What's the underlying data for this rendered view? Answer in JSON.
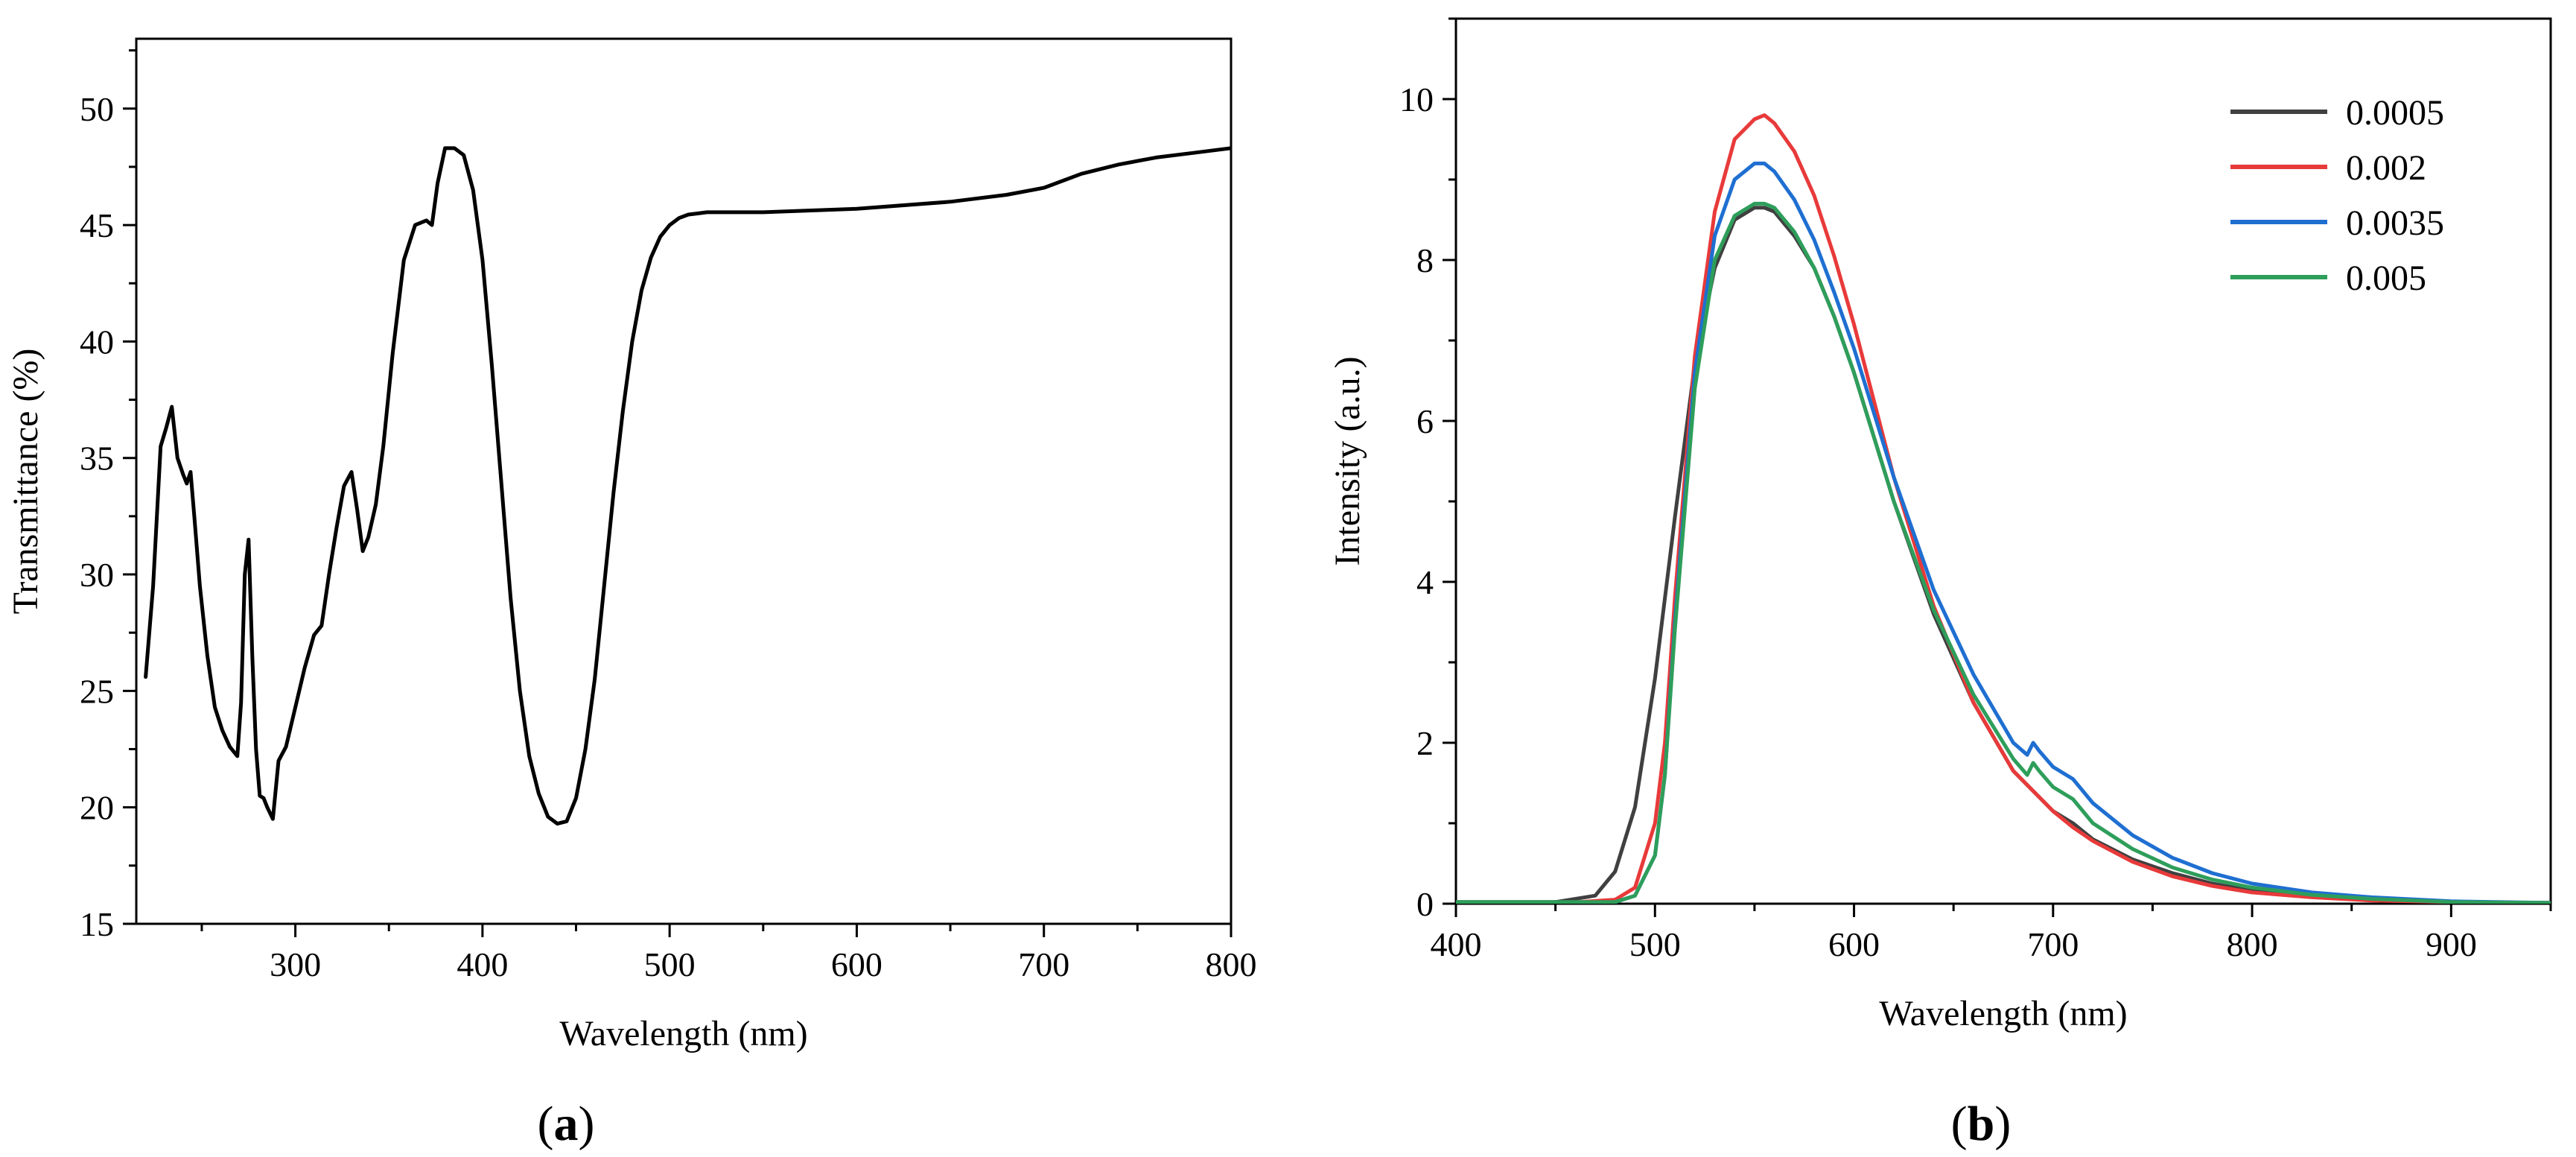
{
  "chart_data": [
    {
      "panel": "a",
      "panel_label": "(a)",
      "type": "line",
      "title": "",
      "xlabel": "Wavelength (nm)",
      "ylabel": "Transmittance (%)",
      "xlim": [
        215,
        800
      ],
      "ylim": [
        15,
        53
      ],
      "xticks": [
        300,
        400,
        500,
        600,
        700,
        800
      ],
      "yticks": [
        15,
        20,
        25,
        30,
        35,
        40,
        45,
        50
      ],
      "grid": false,
      "legend": null,
      "series": [
        {
          "name": "Transmittance",
          "color": "#000000",
          "x": [
            220,
            224,
            228,
            231,
            234,
            237,
            240,
            242,
            244,
            246,
            249,
            253,
            257,
            261,
            265,
            269,
            271,
            273,
            275,
            277,
            279,
            281,
            283,
            285,
            288,
            291,
            295,
            300,
            305,
            310,
            314,
            318,
            322,
            326,
            330,
            333,
            336,
            339,
            343,
            347,
            352,
            358,
            364,
            370,
            373,
            376,
            380,
            385,
            390,
            395,
            400,
            405,
            410,
            415,
            420,
            425,
            430,
            435,
            440,
            445,
            450,
            455,
            460,
            465,
            470,
            475,
            480,
            485,
            490,
            495,
            500,
            505,
            510,
            515,
            520,
            530,
            550,
            600,
            650,
            680,
            700,
            720,
            740,
            760,
            780,
            800
          ],
          "y": [
            25.6,
            29.5,
            35.5,
            36.3,
            37.2,
            35.0,
            34.3,
            33.9,
            34.4,
            32.5,
            29.5,
            26.5,
            24.3,
            23.3,
            22.6,
            22.2,
            24.5,
            30.0,
            31.5,
            26.5,
            22.5,
            20.5,
            20.4,
            20.0,
            19.5,
            22.0,
            22.6,
            24.3,
            26.0,
            27.4,
            27.8,
            30.0,
            32.0,
            33.8,
            34.4,
            32.8,
            31.0,
            31.6,
            33.0,
            35.5,
            39.5,
            43.5,
            45.0,
            45.2,
            45.0,
            46.8,
            48.3,
            48.3,
            48.0,
            46.5,
            43.5,
            39.0,
            34.0,
            29.0,
            25.0,
            22.2,
            20.6,
            19.6,
            19.3,
            19.4,
            20.4,
            22.5,
            25.5,
            29.5,
            33.5,
            37.0,
            40.0,
            42.2,
            43.6,
            44.5,
            45.0,
            45.3,
            45.45,
            45.5,
            45.55,
            45.55,
            45.55,
            45.7,
            46.0,
            46.3,
            46.6,
            47.2,
            47.6,
            47.9,
            48.1,
            48.3
          ]
        }
      ]
    },
    {
      "panel": "b",
      "panel_label": "(b)",
      "type": "line",
      "title": "",
      "xlabel": "Wavelength (nm)",
      "ylabel": "Intensity (a.u.)",
      "xlim": [
        400,
        950
      ],
      "ylim": [
        0,
        11
      ],
      "xticks": [
        400,
        500,
        600,
        700,
        800,
        900
      ],
      "yticks": [
        0,
        2,
        4,
        6,
        8,
        10
      ],
      "grid": false,
      "legend": "top-right",
      "series": [
        {
          "name": "0.0005",
          "color": "#404040",
          "x": [
            400,
            450,
            470,
            480,
            490,
            500,
            510,
            520,
            530,
            540,
            550,
            555,
            560,
            570,
            580,
            590,
            600,
            620,
            640,
            660,
            680,
            690,
            700,
            710,
            720,
            740,
            760,
            780,
            800,
            830,
            860,
            900,
            950
          ],
          "y": [
            0.02,
            0.02,
            0.1,
            0.4,
            1.2,
            2.8,
            4.8,
            6.7,
            7.9,
            8.5,
            8.65,
            8.65,
            8.6,
            8.3,
            7.9,
            7.3,
            6.6,
            5.0,
            3.6,
            2.5,
            1.65,
            1.4,
            1.15,
            1.0,
            0.8,
            0.55,
            0.38,
            0.25,
            0.16,
            0.09,
            0.05,
            0.02,
            0.01
          ]
        },
        {
          "name": "0.002",
          "color": "#e83a3a",
          "x": [
            400,
            450,
            480,
            490,
            500,
            505,
            510,
            520,
            530,
            540,
            550,
            555,
            560,
            570,
            580,
            590,
            600,
            620,
            640,
            660,
            680,
            690,
            700,
            710,
            720,
            740,
            760,
            780,
            800,
            830,
            860,
            900,
            950
          ],
          "y": [
            0.0,
            0.0,
            0.05,
            0.2,
            1.0,
            2.0,
            3.8,
            6.8,
            8.6,
            9.5,
            9.75,
            9.8,
            9.7,
            9.35,
            8.8,
            8.05,
            7.2,
            5.3,
            3.7,
            2.5,
            1.65,
            1.4,
            1.15,
            0.95,
            0.78,
            0.52,
            0.34,
            0.22,
            0.14,
            0.08,
            0.04,
            0.02,
            0.01
          ]
        },
        {
          "name": "0.0035",
          "color": "#1f6fd1",
          "x": [
            400,
            450,
            480,
            490,
            500,
            505,
            510,
            520,
            530,
            540,
            550,
            555,
            560,
            570,
            580,
            590,
            600,
            620,
            640,
            660,
            680,
            687,
            690,
            693,
            700,
            710,
            720,
            740,
            760,
            780,
            800,
            830,
            860,
            900,
            950
          ],
          "y": [
            0.0,
            0.0,
            0.02,
            0.1,
            0.6,
            1.6,
            3.5,
            6.6,
            8.3,
            9.0,
            9.2,
            9.2,
            9.1,
            8.75,
            8.25,
            7.6,
            6.9,
            5.3,
            3.9,
            2.85,
            2.0,
            1.85,
            2.0,
            1.9,
            1.7,
            1.55,
            1.25,
            0.85,
            0.57,
            0.38,
            0.25,
            0.14,
            0.08,
            0.03,
            0.01
          ]
        },
        {
          "name": "0.005",
          "color": "#2e9e5b",
          "x": [
            400,
            450,
            480,
            490,
            500,
            505,
            510,
            520,
            530,
            540,
            550,
            555,
            560,
            570,
            580,
            590,
            600,
            620,
            640,
            660,
            680,
            687,
            690,
            693,
            700,
            710,
            720,
            740,
            760,
            780,
            800,
            830,
            860,
            900,
            950
          ],
          "y": [
            0.02,
            0.02,
            0.02,
            0.1,
            0.6,
            1.6,
            3.4,
            6.4,
            8.0,
            8.55,
            8.7,
            8.7,
            8.65,
            8.35,
            7.9,
            7.3,
            6.6,
            5.0,
            3.65,
            2.6,
            1.8,
            1.6,
            1.75,
            1.65,
            1.45,
            1.3,
            1.0,
            0.68,
            0.45,
            0.3,
            0.2,
            0.11,
            0.06,
            0.02,
            0.01
          ]
        }
      ]
    }
  ]
}
